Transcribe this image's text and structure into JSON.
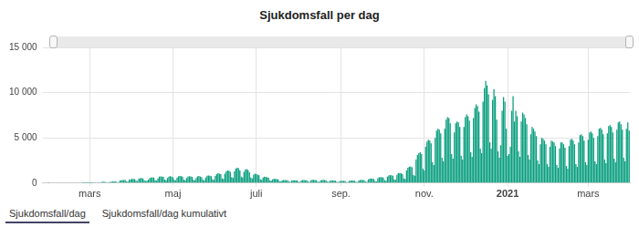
{
  "chart_data": {
    "type": "bar",
    "title": "Sjukdomsfall per dag",
    "categories": [
      null,
      null,
      null,
      null,
      null,
      null,
      null,
      null,
      null,
      null,
      null,
      null,
      null,
      null,
      null,
      null,
      null,
      null,
      null,
      null,
      null,
      null,
      null,
      null,
      null,
      null,
      null,
      null,
      null,
      null,
      null,
      null,
      null,
      null,
      "mars",
      null,
      null,
      null,
      null,
      null,
      null,
      null,
      null,
      null,
      null,
      null,
      null,
      null,
      null,
      null,
      null,
      null,
      null,
      null,
      null,
      null,
      null,
      null,
      null,
      null,
      null,
      null,
      null,
      null,
      null,
      null,
      null,
      null,
      null,
      null,
      null,
      null,
      null,
      null,
      null,
      null,
      null,
      null,
      null,
      null,
      null,
      null,
      null,
      null,
      null,
      null,
      null,
      null,
      null,
      null,
      null,
      null,
      null,
      null,
      null,
      "maj",
      null,
      null,
      null,
      null,
      null,
      null,
      null,
      null,
      null,
      null,
      null,
      null,
      null,
      null,
      null,
      null,
      null,
      null,
      null,
      null,
      null,
      null,
      null,
      null,
      null,
      null,
      null,
      null,
      null,
      null,
      null,
      null,
      null,
      null,
      null,
      null,
      null,
      null,
      null,
      null,
      null,
      null,
      null,
      null,
      null,
      null,
      null,
      null,
      null,
      null,
      null,
      null,
      null,
      null,
      null,
      null,
      null,
      null,
      null,
      null,
      "juli",
      null,
      null,
      null,
      null,
      null,
      null,
      null,
      null,
      null,
      null,
      null,
      null,
      null,
      null,
      null,
      null,
      null,
      null,
      null,
      null,
      null,
      null,
      null,
      null,
      null,
      null,
      null,
      null,
      null,
      null,
      null,
      null,
      null,
      null,
      null,
      null,
      null,
      null,
      null,
      null,
      null,
      null,
      null,
      null,
      null,
      null,
      null,
      null,
      null,
      null,
      null,
      null,
      null,
      null,
      null,
      null,
      null,
      null,
      null,
      null,
      null,
      "sep.",
      null,
      null,
      null,
      null,
      null,
      null,
      null,
      null,
      null,
      null,
      null,
      null,
      null,
      null,
      null,
      null,
      null,
      null,
      null,
      null,
      null,
      null,
      null,
      null,
      null,
      null,
      null,
      null,
      null,
      null,
      null,
      null,
      null,
      null,
      null,
      null,
      null,
      null,
      null,
      null,
      null,
      null,
      null,
      null,
      null,
      null,
      null,
      null,
      null,
      null,
      null,
      null,
      null,
      null,
      null,
      null,
      null,
      null,
      null,
      null,
      "nov.",
      null,
      null,
      null,
      null,
      null,
      null,
      null,
      null,
      null,
      null,
      null,
      null,
      null,
      null,
      null,
      null,
      null,
      null,
      null,
      null,
      null,
      null,
      null,
      null,
      null,
      null,
      null,
      null,
      null,
      null,
      null,
      null,
      null,
      null,
      null,
      null,
      null,
      null,
      null,
      null,
      null,
      null,
      null,
      null,
      null,
      null,
      null,
      null,
      null,
      null,
      null,
      null,
      null,
      null,
      null,
      null,
      null,
      null,
      null,
      null,
      "2021",
      null,
      null,
      null,
      null,
      null,
      null,
      null,
      null,
      null,
      null,
      null,
      null,
      null,
      null,
      null,
      null,
      null,
      null,
      null,
      null,
      null,
      null,
      null,
      null,
      null,
      null,
      null,
      null,
      null,
      null,
      null,
      null,
      null,
      null,
      null,
      null,
      null,
      null,
      null,
      null,
      null,
      null,
      null,
      null,
      null,
      null,
      null,
      null,
      null,
      null,
      null,
      null,
      null,
      null,
      null,
      null,
      null,
      null,
      "mars",
      null,
      null,
      null,
      null,
      null,
      null,
      null,
      null,
      null,
      null,
      null,
      null,
      null,
      null,
      null,
      null,
      null,
      null,
      null,
      null,
      null,
      null,
      null,
      null,
      null,
      null,
      null,
      null,
      null,
      null
    ],
    "values": [
      0,
      0,
      0,
      0,
      1,
      0,
      0,
      0,
      0,
      0,
      0,
      0,
      0,
      0,
      0,
      0,
      0,
      0,
      0,
      0,
      0,
      0,
      0,
      0,
      0,
      0,
      0,
      0,
      0,
      1,
      2,
      5,
      3,
      1,
      2,
      8,
      12,
      20,
      35,
      50,
      30,
      40,
      90,
      140,
      160,
      130,
      110,
      60,
      70,
      120,
      150,
      170,
      180,
      190,
      110,
      90,
      260,
      300,
      330,
      340,
      350,
      180,
      160,
      380,
      420,
      460,
      470,
      440,
      250,
      220,
      480,
      540,
      560,
      520,
      300,
      240,
      260,
      380,
      560,
      620,
      640,
      600,
      320,
      280,
      520,
      700,
      740,
      720,
      680,
      380,
      320,
      560,
      720,
      760,
      700,
      640,
      360,
      300,
      580,
      740,
      780,
      760,
      700,
      380,
      320,
      560,
      720,
      760,
      740,
      680,
      360,
      300,
      560,
      740,
      780,
      700,
      640,
      360,
      300,
      620,
      800,
      840,
      820,
      760,
      420,
      360,
      780,
      1000,
      1080,
      1040,
      980,
      520,
      460,
      1050,
      1300,
      1400,
      1360,
      1250,
      650,
      560,
      1300,
      1600,
      1700,
      1650,
      1400,
      700,
      600,
      1250,
      1500,
      1550,
      1450,
      1200,
      600,
      500,
      900,
      1050,
      1000,
      950,
      850,
      420,
      360,
      600,
      700,
      680,
      640,
      580,
      290,
      250,
      420,
      480,
      460,
      430,
      400,
      200,
      170,
      300,
      340,
      330,
      320,
      300,
      150,
      130,
      280,
      320,
      310,
      300,
      280,
      140,
      120,
      290,
      330,
      340,
      320,
      300,
      150,
      130,
      300,
      350,
      360,
      340,
      310,
      160,
      140,
      290,
      340,
      350,
      330,
      300,
      150,
      130,
      250,
      300,
      290,
      280,
      260,
      130,
      110,
      200,
      240,
      250,
      240,
      220,
      110,
      100,
      220,
      270,
      280,
      270,
      250,
      120,
      110,
      280,
      340,
      350,
      330,
      310,
      150,
      130,
      400,
      480,
      500,
      480,
      450,
      220,
      190,
      540,
      640,
      660,
      640,
      600,
      300,
      260,
      700,
      840,
      880,
      860,
      800,
      400,
      350,
      900,
      1080,
      1120,
      1100,
      1000,
      520,
      450,
      1400,
      1700,
      1800,
      1850,
      1750,
      900,
      800,
      2600,
      3100,
      3300,
      3400,
      3200,
      1600,
      1400,
      4000,
      4600,
      4800,
      4700,
      4400,
      2300,
      2000,
      5000,
      5800,
      6000,
      5900,
      5500,
      2800,
      2400,
      6000,
      7000,
      7300,
      7200,
      6600,
      3200,
      2700,
      5600,
      6600,
      6800,
      6700,
      6200,
      3000,
      2600,
      6200,
      7300,
      7600,
      7400,
      6900,
      3400,
      2900,
      7200,
      8300,
      8700,
      8500,
      7900,
      3800,
      3300,
      9000,
      10500,
      11300,
      10800,
      9800,
      4500,
      3800,
      9200,
      10400,
      9600,
      7000,
      3500,
      2800,
      4200,
      8000,
      9500,
      9000,
      6000,
      3000,
      3200,
      4000,
      8000,
      9600,
      6800,
      8000,
      7400,
      3500,
      2900,
      6800,
      7800,
      7600,
      7200,
      6500,
      3100,
      2600,
      5400,
      6200,
      6000,
      5700,
      5200,
      2500,
      2100,
      4300,
      5000,
      4900,
      4700,
      4300,
      2100,
      1800,
      4000,
      4700,
      4600,
      4500,
      4100,
      2000,
      1700,
      3800,
      4500,
      4500,
      4300,
      3900,
      1900,
      1600,
      4100,
      4800,
      4900,
      4700,
      4300,
      2100,
      1800,
      4500,
      5300,
      5400,
      5200,
      4700,
      2300,
      2000,
      4800,
      5600,
      5700,
      5500,
      5000,
      2400,
      2100,
      5200,
      6000,
      6100,
      5900,
      5400,
      2600,
      2200,
      5500,
      6300,
      6400,
      6200,
      5600,
      2700,
      2300,
      5900,
      6700,
      6800,
      6500,
      5900,
      2800,
      2400,
      6000,
      6700,
      5800
    ],
    "color": "#089e7e",
    "ylim": [
      0,
      15000
    ],
    "yticks": [
      0,
      {
        "value": 5000,
        "label": "5 000"
      },
      {
        "value": 10000,
        "label": "10 000"
      },
      {
        "value": 15000,
        "label": "15 000"
      }
    ],
    "grid": true
  },
  "tabs": [
    "Sjukdomsfall/dag",
    "Sjukdomsfall/dag kumulativt"
  ]
}
